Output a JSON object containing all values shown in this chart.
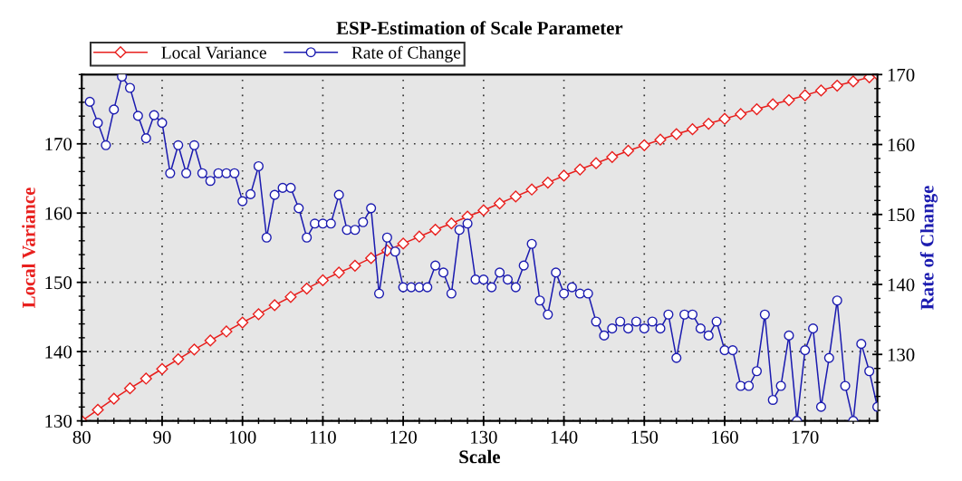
{
  "chart_data": {
    "type": "line",
    "title": "ESP-Estimation of Scale Parameter",
    "xlabel": "Scale",
    "ylabel": "Local Variance",
    "y2label": "Rate of Change",
    "xlim": [
      80,
      179
    ],
    "xticks": [
      80,
      90,
      100,
      110,
      120,
      130,
      140,
      150,
      160,
      170
    ],
    "ylim": [
      130,
      180
    ],
    "yticks": [
      130,
      140,
      150,
      160,
      170
    ],
    "y2lim": [
      120.5,
      170
    ],
    "y2ticks": [
      130,
      140,
      150,
      160,
      170
    ],
    "grid": true,
    "legend": "top left",
    "line_style": "solid",
    "series": [
      {
        "name": "Local Variance",
        "color": "#e8201e",
        "marker": "diamond",
        "axis": "y",
        "x": [
          80,
          82,
          84,
          86,
          88,
          90,
          92,
          94,
          96,
          98,
          100,
          102,
          104,
          106,
          108,
          110,
          112,
          114,
          116,
          118,
          120,
          122,
          124,
          126,
          128,
          130,
          132,
          134,
          136,
          138,
          140,
          142,
          144,
          146,
          148,
          150,
          152,
          154,
          156,
          158,
          160,
          162,
          164,
          166,
          168,
          170,
          172,
          174,
          176,
          178,
          179
        ],
        "values": [
          130.0,
          131.6,
          133.2,
          134.7,
          136.1,
          137.5,
          138.9,
          140.3,
          141.6,
          142.9,
          144.2,
          145.4,
          146.7,
          147.9,
          149.1,
          150.3,
          151.4,
          152.4,
          153.5,
          154.6,
          155.6,
          156.6,
          157.6,
          158.5,
          159.5,
          160.4,
          161.4,
          162.4,
          163.4,
          164.4,
          165.4,
          166.3,
          167.2,
          168.1,
          169.0,
          169.8,
          170.6,
          171.4,
          172.1,
          172.9,
          173.6,
          174.3,
          175.0,
          175.7,
          176.3,
          177.0,
          177.7,
          178.4,
          179.0,
          179.6,
          180.0
        ]
      },
      {
        "name": "Rate of Change",
        "color": "#1c1cb0",
        "marker": "circle",
        "axis": "y2",
        "x": [
          81,
          82,
          83,
          84,
          85,
          86,
          87,
          88,
          89,
          90,
          91,
          92,
          93,
          94,
          95,
          96,
          97,
          98,
          99,
          100,
          101,
          102,
          103,
          104,
          105,
          106,
          107,
          108,
          109,
          110,
          111,
          112,
          113,
          114,
          115,
          116,
          117,
          118,
          119,
          120,
          121,
          122,
          123,
          124,
          125,
          126,
          127,
          128,
          129,
          130,
          131,
          132,
          133,
          134,
          135,
          136,
          137,
          138,
          139,
          140,
          141,
          142,
          143,
          144,
          145,
          146,
          147,
          148,
          149,
          150,
          151,
          152,
          153,
          154,
          155,
          156,
          157,
          158,
          159,
          160,
          161,
          162,
          163,
          164,
          165,
          166,
          167,
          168,
          169,
          170,
          171,
          172,
          173,
          174,
          175,
          176,
          177,
          178,
          179
        ],
        "values": [
          166.1,
          163.1,
          159.9,
          165.0,
          169.7,
          168.1,
          164.1,
          160.9,
          164.2,
          163.1,
          155.9,
          159.9,
          155.9,
          159.9,
          155.9,
          154.8,
          155.9,
          155.9,
          155.9,
          151.9,
          152.9,
          156.9,
          146.7,
          152.8,
          153.8,
          153.8,
          150.9,
          146.7,
          148.7,
          148.7,
          148.7,
          152.8,
          147.8,
          147.8,
          148.9,
          150.9,
          138.7,
          146.7,
          144.7,
          139.6,
          139.6,
          139.6,
          139.6,
          142.7,
          141.7,
          138.7,
          147.8,
          148.7,
          140.7,
          140.7,
          139.6,
          141.7,
          140.7,
          139.6,
          142.7,
          145.8,
          137.7,
          135.7,
          141.7,
          138.7,
          139.6,
          138.7,
          138.7,
          134.7,
          132.7,
          133.7,
          134.7,
          133.7,
          134.7,
          133.7,
          134.7,
          133.7,
          135.7,
          129.5,
          135.7,
          135.7,
          133.7,
          132.7,
          134.7,
          130.6,
          130.6,
          125.5,
          125.5,
          127.6,
          135.7,
          123.5,
          125.5,
          132.7,
          120.5,
          130.6,
          133.7,
          122.5,
          129.5,
          137.7,
          125.5,
          120.5,
          131.5,
          127.6,
          122.5
        ]
      }
    ]
  }
}
